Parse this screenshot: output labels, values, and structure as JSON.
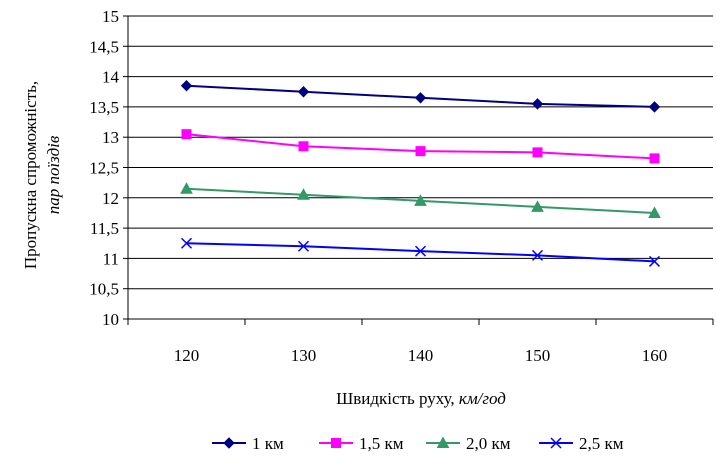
{
  "chart_data": {
    "type": "line",
    "categories": [
      "120",
      "130",
      "140",
      "150",
      "160"
    ],
    "ylabel": {
      "line1": "Пропускна спроможність,",
      "line2": "пар поїздів"
    },
    "xlabel": {
      "main": "Швидкість руху, ",
      "unit": "км/год"
    },
    "ylim": [
      10,
      15
    ],
    "ystep": 0.5,
    "yticks": [
      "10",
      "10,5",
      "11",
      "11,5",
      "12",
      "12,5",
      "13",
      "13,5",
      "14",
      "14,5",
      "15"
    ],
    "grid": true,
    "legend_position": "bottom",
    "series": [
      {
        "name": "1 км",
        "values": [
          13.85,
          13.75,
          13.65,
          13.55,
          13.5
        ],
        "color": "#000080",
        "marker": "diamond"
      },
      {
        "name": "1,5 км",
        "values": [
          13.05,
          12.85,
          12.77,
          12.75,
          12.65
        ],
        "color": "#ff00ff",
        "marker": "square"
      },
      {
        "name": "2,0 км",
        "values": [
          12.15,
          12.05,
          11.95,
          11.85,
          11.75
        ],
        "color": "#339966",
        "marker": "triangle"
      },
      {
        "name": "2,5 км",
        "values": [
          11.25,
          11.2,
          11.12,
          11.05,
          10.95
        ],
        "color": "#0000ff",
        "marker": "x"
      }
    ]
  }
}
